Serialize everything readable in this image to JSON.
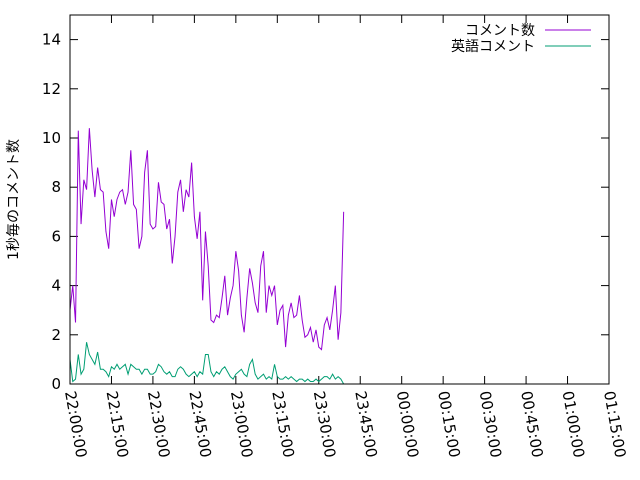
{
  "chart_data": {
    "type": "line",
    "title": "",
    "xlabel": "",
    "ylabel": "1秒毎のコメント数",
    "ylim": [
      0,
      15
    ],
    "yticks": [
      0,
      2,
      4,
      6,
      8,
      10,
      12,
      14
    ],
    "xlim": [
      "22:00:00",
      "01:15:00"
    ],
    "xticks": [
      "22:00:00",
      "22:15:00",
      "22:30:00",
      "22:45:00",
      "23:00:00",
      "23:15:00",
      "23:30:00",
      "23:45:00",
      "00:00:00",
      "00:15:00",
      "00:30:00",
      "00:45:00",
      "01:00:00",
      "01:15:00"
    ],
    "grid": false,
    "legend": "top-right",
    "x_step": "1 minute",
    "x_start": "22:00:00",
    "series": [
      {
        "name": "コメント数",
        "color": "#9400d3",
        "values": [
          3.0,
          4.0,
          2.5,
          10.3,
          6.5,
          8.3,
          7.9,
          10.4,
          8.7,
          7.6,
          8.8,
          7.9,
          7.8,
          6.2,
          5.5,
          7.5,
          6.8,
          7.5,
          7.8,
          7.9,
          7.3,
          7.8,
          9.5,
          7.3,
          7.1,
          5.5,
          6.0,
          8.6,
          9.5,
          6.5,
          6.3,
          6.4,
          8.2,
          7.4,
          7.3,
          6.3,
          6.7,
          4.9,
          6.0,
          7.8,
          8.3,
          7.0,
          7.9,
          7.6,
          9.0,
          6.8,
          5.9,
          7.0,
          3.4,
          6.2,
          4.8,
          2.6,
          2.5,
          2.8,
          2.7,
          3.5,
          4.4,
          2.8,
          3.5,
          4.0,
          5.4,
          4.6,
          2.8,
          2.1,
          3.5,
          4.7,
          4.1,
          3.3,
          2.9,
          4.8,
          5.4,
          2.9,
          4.0,
          3.6,
          4.0,
          2.4,
          3.0,
          3.2,
          1.5,
          2.8,
          3.3,
          2.7,
          2.8,
          3.6,
          2.6,
          1.9,
          2.0,
          2.3,
          1.7,
          2.2,
          1.5,
          1.4,
          2.4,
          2.7,
          2.2,
          3.0,
          4.0,
          1.8,
          2.9,
          7.0
        ]
      },
      {
        "name": "英語コメント",
        "color": "#009e73",
        "values": [
          1.0,
          0.1,
          0.2,
          1.2,
          0.4,
          0.6,
          1.7,
          1.2,
          1.0,
          0.8,
          1.3,
          0.6,
          0.6,
          0.5,
          0.3,
          0.7,
          0.6,
          0.8,
          0.6,
          0.7,
          0.8,
          0.4,
          0.8,
          0.7,
          0.6,
          0.6,
          0.4,
          0.6,
          0.6,
          0.4,
          0.4,
          0.5,
          0.8,
          0.7,
          0.5,
          0.4,
          0.5,
          0.3,
          0.3,
          0.6,
          0.7,
          0.6,
          0.4,
          0.3,
          0.4,
          0.5,
          0.3,
          0.5,
          0.4,
          1.2,
          1.2,
          0.5,
          0.3,
          0.5,
          0.4,
          0.6,
          0.7,
          0.5,
          0.3,
          0.2,
          0.4,
          0.5,
          0.6,
          0.4,
          0.3,
          0.8,
          1.0,
          0.4,
          0.2,
          0.3,
          0.4,
          0.2,
          0.3,
          0.2,
          0.8,
          0.3,
          0.2,
          0.2,
          0.3,
          0.2,
          0.3,
          0.2,
          0.1,
          0.2,
          0.2,
          0.1,
          0.2,
          0.1,
          0.1,
          0.2,
          0.1,
          0.2,
          0.3,
          0.3,
          0.2,
          0.4,
          0.2,
          0.3,
          0.2,
          0.0
        ]
      }
    ]
  }
}
